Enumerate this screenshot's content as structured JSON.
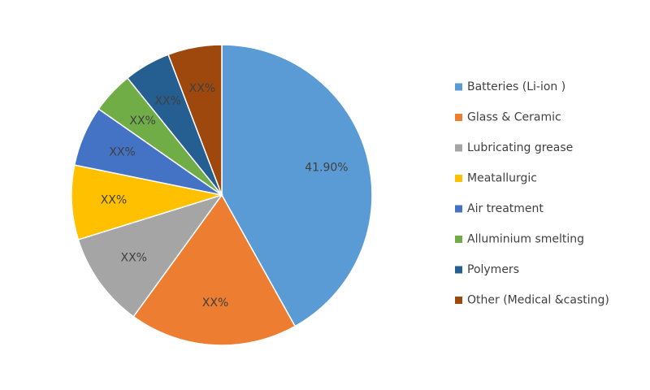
{
  "chart_data": {
    "type": "pie",
    "categories": [
      "Batteries (Li-ion )",
      "Glass & Ceramic",
      "Lubricating grease",
      "Meatallurgic",
      "Air treatment",
      "Alluminium smelting",
      "Polymers",
      "Other (Medical &casting)"
    ],
    "values": [
      41.9,
      18.1,
      10.2,
      8.0,
      6.5,
      4.5,
      5.0,
      5.8
    ],
    "value_labels": [
      "41.90%",
      "XX%",
      "XX%",
      "XX%",
      "XX%",
      "XX%",
      "XX%",
      "XX%"
    ],
    "colors": [
      "#5b9bd5",
      "#ed7d31",
      "#a5a5a5",
      "#ffc000",
      "#4472c4",
      "#70ad47",
      "#255e91",
      "#9e480e"
    ],
    "legend": "right"
  }
}
